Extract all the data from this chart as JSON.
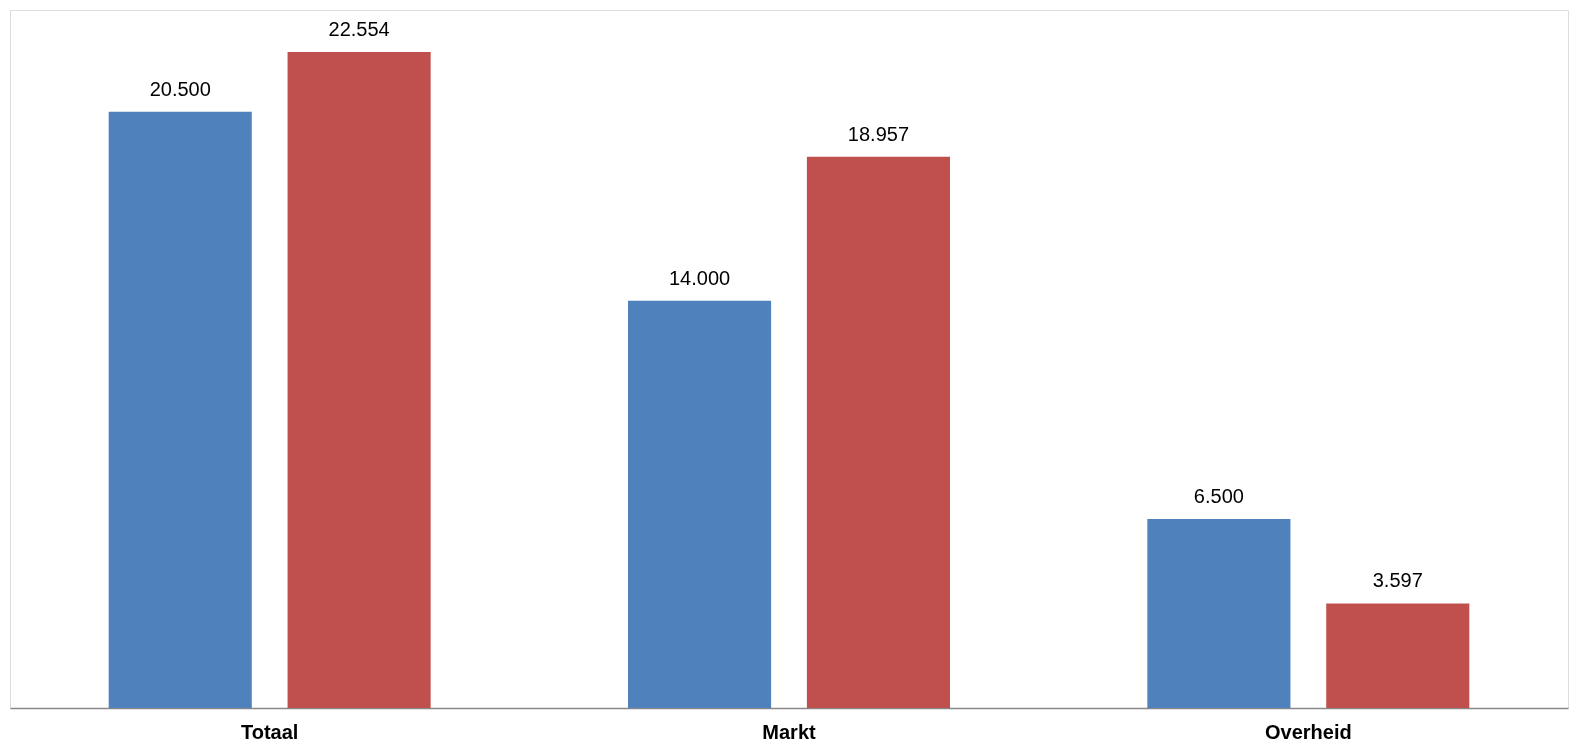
{
  "chart_data": {
    "type": "bar",
    "categories": [
      "Totaal",
      "Markt",
      "Overheid"
    ],
    "series": [
      {
        "color": "#4f81bd",
        "values": [
          20500,
          14000,
          6500
        ],
        "value_labels": [
          "20.500",
          "14.000",
          "6.500"
        ]
      },
      {
        "color": "#c0504d",
        "values": [
          22554,
          18957,
          3597
        ],
        "value_labels": [
          "22.554",
          "18.957",
          "3.597"
        ]
      }
    ],
    "legend": false,
    "grid": false
  }
}
